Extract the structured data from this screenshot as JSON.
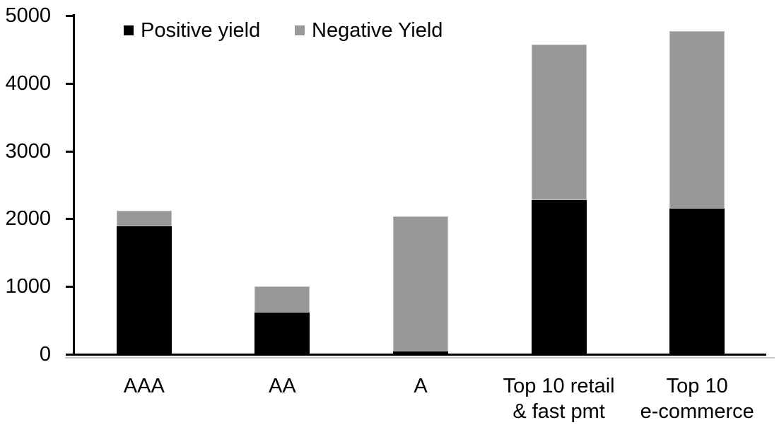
{
  "chart_data": {
    "type": "bar",
    "stacked": true,
    "title": "",
    "xlabel": "",
    "ylabel": "",
    "categories": [
      "AAA",
      "AA",
      "A",
      "Top 10 retail & fast pmt",
      "Top 10 e-commerce"
    ],
    "category_display_lines": [
      [
        "AAA"
      ],
      [
        "AA"
      ],
      [
        "A"
      ],
      [
        "Top 10 retail",
        "& fast pmt"
      ],
      [
        "Top 10",
        "e-commerce"
      ]
    ],
    "series": [
      {
        "name": "Positive yield",
        "color": "#000000",
        "border_color": "",
        "values": [
          1890,
          620,
          40,
          2280,
          2150
        ]
      },
      {
        "name": "Negative Yield",
        "color": "#989898",
        "border_color": "#bdbdbd",
        "values": [
          230,
          380,
          2000,
          2290,
          2620
        ]
      }
    ],
    "ylim": [
      0,
      5000
    ],
    "ytick_interval": 1000,
    "ytick_labels": [
      "0",
      "1000",
      "2000",
      "3000",
      "4000",
      "5000"
    ],
    "grid": false,
    "legend_position": "top",
    "axis_color": "#000000",
    "text_color": "#000000",
    "background_color": "#ffffff"
  }
}
